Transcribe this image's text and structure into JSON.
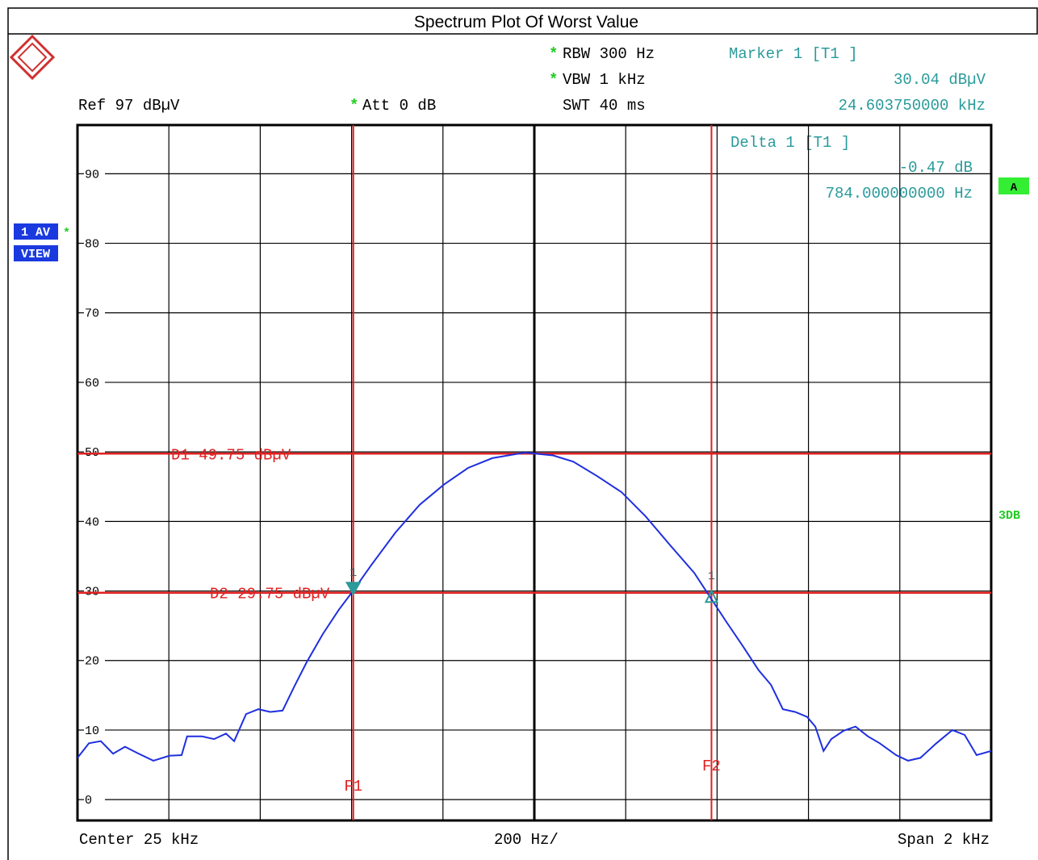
{
  "chart_data": {
    "type": "line",
    "title": "Spectrum Plot Of Worst Value",
    "x": [
      24000,
      24025,
      24051,
      24078,
      24104,
      24131,
      24166,
      24201,
      24228,
      24240,
      24272,
      24299,
      24325,
      24343,
      24369,
      24396,
      24422,
      24449,
      24475,
      24502,
      24537,
      24572,
      24602,
      24643,
      24696,
      24749,
      24802,
      24855,
      24908,
      24943,
      24979,
      25041,
      25085,
      25138,
      25191,
      25244,
      25297,
      25350,
      25385,
      25420,
      25456,
      25491,
      25518,
      25544,
      25571,
      25597,
      25615,
      25633,
      25650,
      25677,
      25703,
      25730,
      25756,
      25792,
      25818,
      25845,
      25880,
      25915,
      25942,
      25968,
      26000
    ],
    "series": [
      {
        "color": "#1f2fe0",
        "values": [
          6.0,
          8.1,
          8.4,
          6.6,
          7.6,
          6.7,
          5.6,
          6.3,
          6.4,
          9.1,
          9.1,
          8.7,
          9.5,
          8.4,
          12.3,
          13.0,
          12.6,
          12.8,
          16.3,
          19.8,
          23.8,
          27.3,
          29.9,
          33.7,
          38.4,
          42.4,
          45.3,
          47.7,
          49.1,
          49.5,
          49.9,
          49.5,
          48.6,
          46.5,
          44.2,
          40.7,
          36.6,
          32.6,
          29.1,
          25.6,
          22.1,
          18.6,
          16.5,
          13.0,
          12.6,
          11.9,
          10.5,
          7.0,
          8.7,
          9.9,
          10.5,
          9.1,
          8.1,
          6.4,
          5.6,
          6.0,
          8.1,
          10.0,
          9.3,
          6.4,
          7.0
        ]
      }
    ],
    "xlim": [
      24000,
      26000
    ],
    "ylim": [
      -3,
      97
    ],
    "yticks": [
      0,
      10,
      20,
      30,
      40,
      50,
      60,
      70,
      80,
      90
    ],
    "grid": true,
    "line_color": "#e02020",
    "hlines": [
      {
        "label": "D1 49.75 dBµV",
        "y": 49.75
      },
      {
        "label": "D2 29.75 dBµV",
        "y": 29.75
      }
    ],
    "vlines": [
      {
        "label": "F1",
        "x": 24603.75
      },
      {
        "label": "F2",
        "x": 25387.75
      }
    ],
    "markers": [
      {
        "label": "1",
        "x": 24603.75,
        "y": 30.04
      },
      {
        "label": "1",
        "x": 25387.75,
        "y": 29.57
      }
    ],
    "annotations": {
      "ref": "Ref  97 dBµV",
      "att_star": "*",
      "att": "Att  0 dB",
      "rbw_star": "*",
      "rbw": "RBW 300 Hz",
      "vbw_star": "*",
      "vbw": "VBW 1 kHz",
      "swt": "SWT 40 ms",
      "marker": "Marker 1 [T1 ]",
      "marker_level": "30.04 dBµV",
      "marker_freq": "24.603750000 kHz",
      "delta": "Delta 1 [T1 ]",
      "delta_level": "-0.47 dB",
      "delta_freq": "784.000000000 Hz",
      "a": "A",
      "trace_mode": "1 AV",
      "trace_view": "VIEW",
      "trace_star": "*",
      "three_db": "3DB",
      "center": "Center 25 kHz",
      "division": "200 Hz/",
      "span": "Span 2 kHz"
    }
  }
}
